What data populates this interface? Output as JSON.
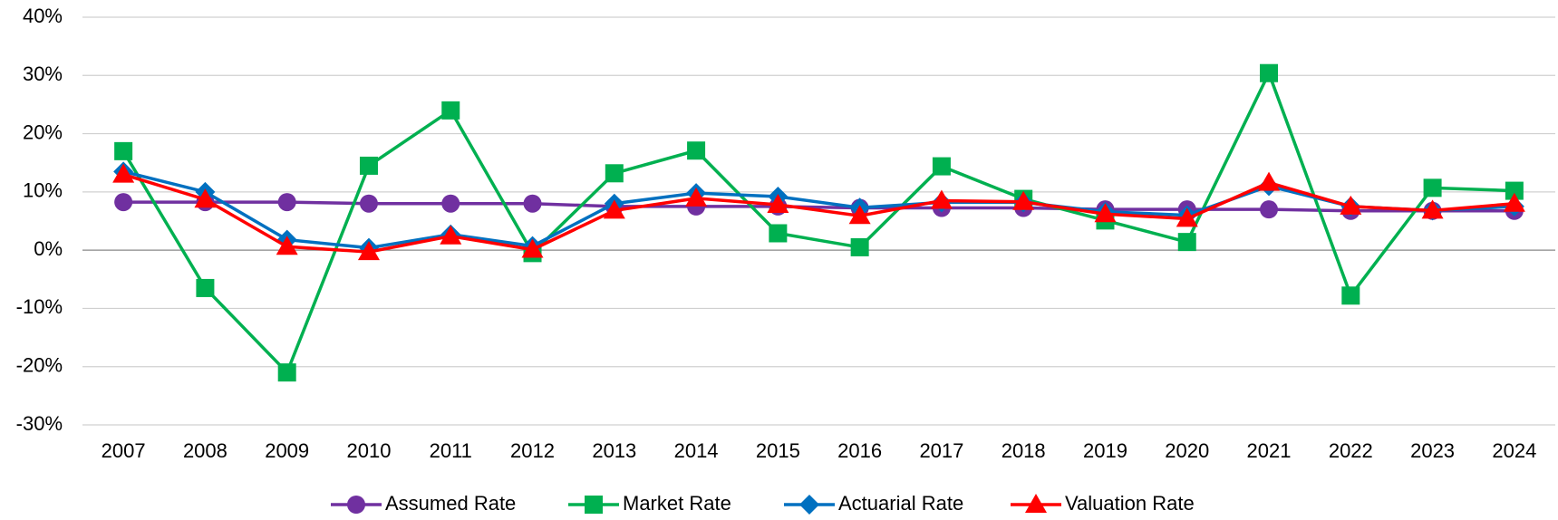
{
  "chart_data": {
    "type": "line",
    "categories": [
      "2007",
      "2008",
      "2009",
      "2010",
      "2011",
      "2012",
      "2013",
      "2014",
      "2015",
      "2016",
      "2017",
      "2018",
      "2019",
      "2020",
      "2021",
      "2022",
      "2023",
      "2024"
    ],
    "series": [
      {
        "name": "Assumed Rate",
        "color": "#7030a0",
        "marker": "circle",
        "values": [
          8.25,
          8.25,
          8.25,
          8,
          8,
          8,
          7.5,
          7.5,
          7.5,
          7.25,
          7.25,
          7.25,
          7,
          7,
          7,
          6.75,
          6.75,
          6.75
        ]
      },
      {
        "name": "Market Rate",
        "color": "#00b050",
        "marker": "square",
        "values": [
          17,
          -6.5,
          -21,
          14.5,
          24,
          -0.5,
          13.2,
          17.1,
          2.9,
          0.5,
          14.4,
          8.8,
          5.1,
          1.4,
          30.4,
          -7.8,
          10.7,
          10.2
        ]
      },
      {
        "name": "Actuarial Rate",
        "color": "#0070c0",
        "marker": "diamond",
        "values": [
          13.5,
          10,
          1.8,
          0.4,
          2.7,
          0.7,
          8,
          9.8,
          9.2,
          7.3,
          8.2,
          8.2,
          6.6,
          6,
          11,
          7.5,
          6.8,
          7.5
        ]
      },
      {
        "name": "Valuation Rate",
        "color": "#ff0000",
        "marker": "triangle",
        "values": [
          13,
          8.7,
          0.6,
          -0.3,
          2.4,
          0.1,
          6.8,
          8.9,
          7.8,
          5.9,
          8.5,
          8.3,
          6.2,
          5.4,
          11.6,
          7.5,
          6.8,
          8
        ]
      }
    ],
    "ylim": [
      -30,
      40
    ],
    "yticks": [
      {
        "value": -30,
        "label": "-30%"
      },
      {
        "value": -20,
        "label": "-20%"
      },
      {
        "value": -10,
        "label": "-10%"
      },
      {
        "value": 0,
        "label": "0%"
      },
      {
        "value": 10,
        "label": "10%"
      },
      {
        "value": 20,
        "label": "20%"
      },
      {
        "value": 30,
        "label": "30%"
      },
      {
        "value": 40,
        "label": "40%"
      }
    ],
    "grid": true,
    "legend": "bottom"
  }
}
